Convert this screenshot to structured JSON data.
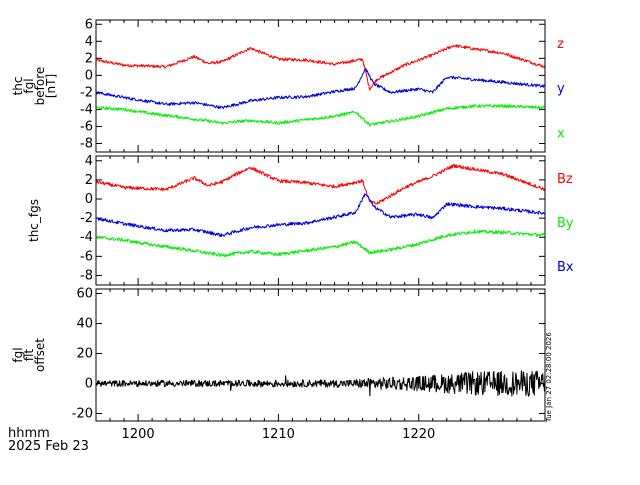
{
  "colors": {
    "red": "#ff0000",
    "green": "#00ee00",
    "blue": "#0000dd",
    "axis": "#000000",
    "trace": "#000000"
  },
  "footer": {
    "time_format_label": "hhmm",
    "date_label": "2025 Feb 23",
    "timestamp": "Tue Jan 27 02:28:00 2026"
  },
  "chart_data": [
    {
      "type": "line",
      "ylabel_lines": [
        "thc",
        "fgl",
        "before",
        "[nT]"
      ],
      "ylim": [
        -9,
        6.5
      ],
      "yticks": [
        -8,
        -6,
        -4,
        -2,
        0,
        2,
        4,
        6
      ],
      "x": [
        1197,
        1229
      ],
      "xticks": [
        1200,
        1210,
        1220
      ],
      "grid": false,
      "legend_placement": "right",
      "series": [
        {
          "name": "z",
          "color": "#ff0000",
          "shape": [
            [
              1197,
              1.8
            ],
            [
              1199,
              1.2
            ],
            [
              1202,
              1.0
            ],
            [
              1204,
              2.2
            ],
            [
              1205,
              1.4
            ],
            [
              1206,
              1.6
            ],
            [
              1207,
              2.4
            ],
            [
              1208,
              3.2
            ],
            [
              1210,
              1.9
            ],
            [
              1212,
              1.8
            ],
            [
              1214,
              1.3
            ],
            [
              1216,
              1.9
            ],
            [
              1216.5,
              -1.6
            ],
            [
              1217,
              -0.5
            ],
            [
              1219,
              1.2
            ],
            [
              1221,
              2.4
            ],
            [
              1222.5,
              3.5
            ],
            [
              1224,
              3.1
            ],
            [
              1226,
              2.6
            ],
            [
              1229,
              1.0
            ]
          ]
        },
        {
          "name": "y",
          "color": "#0000dd",
          "shape": [
            [
              1197,
              -2.0
            ],
            [
              1199,
              -2.6
            ],
            [
              1202,
              -3.4
            ],
            [
              1204,
              -3.2
            ],
            [
              1206,
              -3.8
            ],
            [
              1208,
              -3.0
            ],
            [
              1210,
              -2.6
            ],
            [
              1212,
              -2.5
            ],
            [
              1214,
              -1.9
            ],
            [
              1215.5,
              -1.5
            ],
            [
              1216.2,
              0.8
            ],
            [
              1216.8,
              -1.0
            ],
            [
              1218,
              -2.0
            ],
            [
              1220,
              -1.6
            ],
            [
              1221,
              -2.0
            ],
            [
              1222,
              -0.2
            ],
            [
              1224,
              -0.5
            ],
            [
              1226,
              -0.8
            ],
            [
              1229,
              -1.3
            ]
          ]
        },
        {
          "name": "x",
          "color": "#00ee00",
          "shape": [
            [
              1197,
              -3.8
            ],
            [
              1199,
              -4.0
            ],
            [
              1201,
              -4.5
            ],
            [
              1203,
              -4.9
            ],
            [
              1206,
              -5.6
            ],
            [
              1208,
              -5.3
            ],
            [
              1210,
              -5.6
            ],
            [
              1212,
              -5.2
            ],
            [
              1214,
              -4.8
            ],
            [
              1215.5,
              -4.3
            ],
            [
              1216.5,
              -5.8
            ],
            [
              1218,
              -5.4
            ],
            [
              1220,
              -4.8
            ],
            [
              1222,
              -3.9
            ],
            [
              1224,
              -3.6
            ],
            [
              1226,
              -3.6
            ],
            [
              1229,
              -3.8
            ]
          ]
        }
      ]
    },
    {
      "type": "line",
      "ylabel_lines": [
        "thc_fgs"
      ],
      "ylim": [
        -9,
        4.5
      ],
      "yticks": [
        -8,
        -6,
        -4,
        -2,
        0,
        2,
        4
      ],
      "x": [
        1197,
        1229
      ],
      "xticks": [
        1200,
        1210,
        1220
      ],
      "grid": false,
      "legend_placement": "right",
      "series": [
        {
          "name": "Bz",
          "color": "#ff0000",
          "shape": [
            [
              1197,
              1.8
            ],
            [
              1199,
              1.2
            ],
            [
              1202,
              1.0
            ],
            [
              1204,
              2.2
            ],
            [
              1205,
              1.4
            ],
            [
              1206,
              1.8
            ],
            [
              1207,
              2.6
            ],
            [
              1208,
              3.3
            ],
            [
              1210,
              1.9
            ],
            [
              1212,
              1.7
            ],
            [
              1214,
              1.3
            ],
            [
              1216,
              1.9
            ],
            [
              1216.5,
              -0.3
            ],
            [
              1217,
              -0.5
            ],
            [
              1219,
              1.2
            ],
            [
              1221,
              2.4
            ],
            [
              1222.5,
              3.5
            ],
            [
              1224,
              3.1
            ],
            [
              1226,
              2.6
            ],
            [
              1229,
              1.0
            ]
          ]
        },
        {
          "name": "By",
          "color": "#00ee00",
          "shape": [
            [
              1197,
              -4.0
            ],
            [
              1199,
              -4.3
            ],
            [
              1201,
              -4.8
            ],
            [
              1203,
              -5.2
            ],
            [
              1206,
              -5.9
            ],
            [
              1208,
              -5.5
            ],
            [
              1210,
              -5.8
            ],
            [
              1212,
              -5.4
            ],
            [
              1214,
              -5.0
            ],
            [
              1215.5,
              -4.5
            ],
            [
              1216.5,
              -5.6
            ],
            [
              1218,
              -5.3
            ],
            [
              1220,
              -4.7
            ],
            [
              1222,
              -3.8
            ],
            [
              1224,
              -3.4
            ],
            [
              1226,
              -3.5
            ],
            [
              1229,
              -3.8
            ]
          ]
        },
        {
          "name": "Bx",
          "color": "#0000dd",
          "shape": [
            [
              1197,
              -2.0
            ],
            [
              1199,
              -2.6
            ],
            [
              1202,
              -3.3
            ],
            [
              1204,
              -3.2
            ],
            [
              1206,
              -3.8
            ],
            [
              1208,
              -3.0
            ],
            [
              1210,
              -2.7
            ],
            [
              1212,
              -2.5
            ],
            [
              1214,
              -1.9
            ],
            [
              1215.5,
              -1.4
            ],
            [
              1216.2,
              0.6
            ],
            [
              1216.8,
              -0.8
            ],
            [
              1218,
              -1.9
            ],
            [
              1220,
              -1.6
            ],
            [
              1221,
              -2.0
            ],
            [
              1222,
              -0.5
            ],
            [
              1224,
              -0.8
            ],
            [
              1226,
              -1.0
            ],
            [
              1229,
              -1.5
            ]
          ]
        }
      ]
    },
    {
      "type": "line",
      "ylabel_lines": [
        "fgl",
        "flt",
        "offset"
      ],
      "ylim": [
        -25,
        63
      ],
      "yticks": [
        -20,
        0,
        20,
        40,
        60
      ],
      "x": [
        1197,
        1229
      ],
      "xticks": [
        1200,
        1210,
        1220
      ],
      "grid": false,
      "series": [
        {
          "name": "",
          "color": "#000000",
          "shape": [
            [
              1197,
              0
            ],
            [
              1229,
              0
            ]
          ],
          "noise_amplitude": [
            [
              1197,
              2
            ],
            [
              1215,
              2.5
            ],
            [
              1217,
              4
            ],
            [
              1220,
              5
            ],
            [
              1224,
              8
            ],
            [
              1229,
              9
            ]
          ]
        }
      ]
    }
  ]
}
